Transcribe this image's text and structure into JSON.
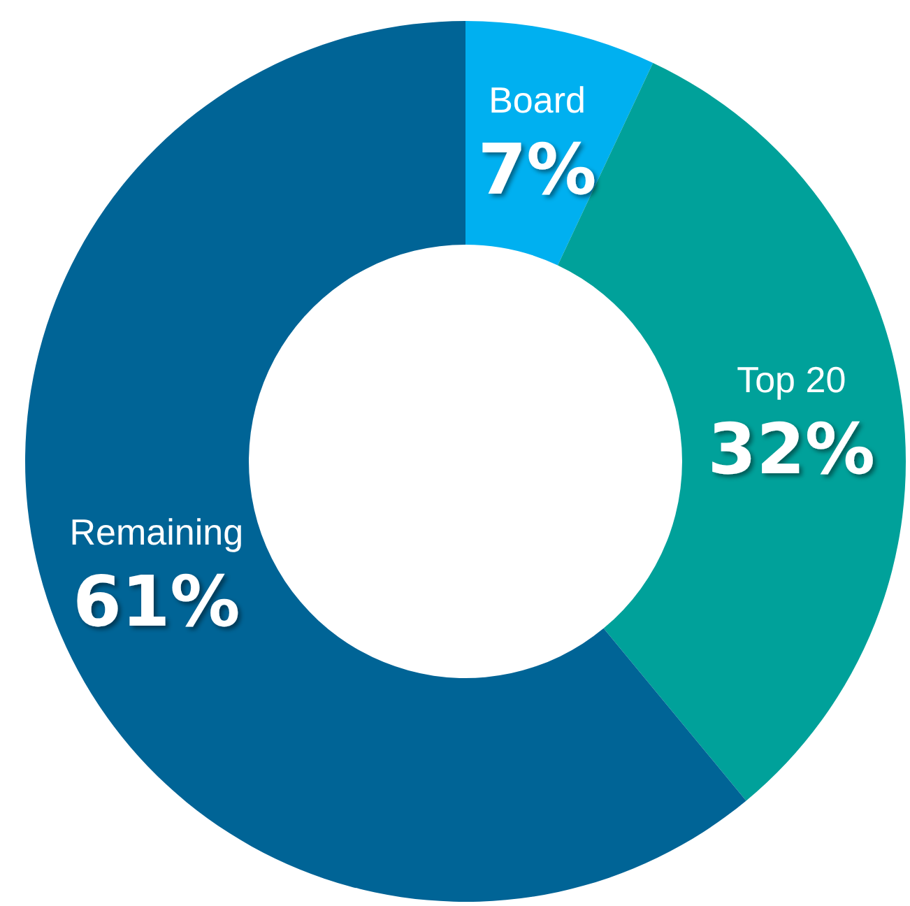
{
  "chart_data": {
    "type": "donut",
    "categories": [
      "Board",
      "Top 20",
      "Remaining"
    ],
    "values": [
      7,
      32,
      61
    ],
    "value_labels": [
      "7%",
      "32%",
      "61%"
    ],
    "colors": [
      "#00b0f0",
      "#00a19a",
      "#006496"
    ]
  }
}
